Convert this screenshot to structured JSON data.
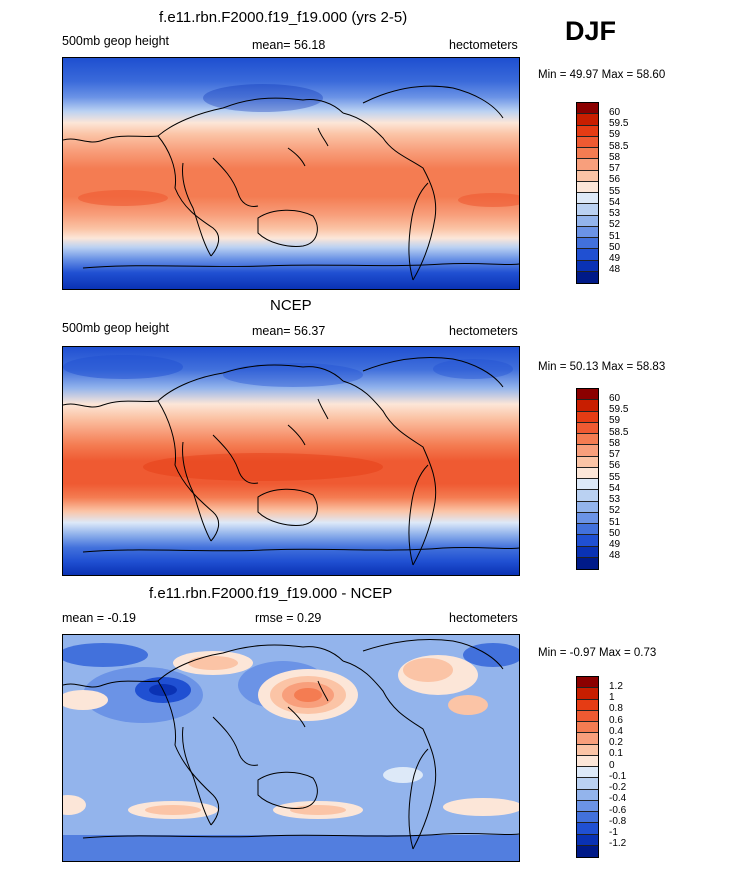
{
  "season": "DJF",
  "panels": [
    {
      "title": "f.e11.rbn.F2000.f19_f19.000 (yrs 2-5)",
      "left_label": "500mb geop height",
      "stat_text": "mean=  56.18",
      "units": "hectometers",
      "minmax": "Min =  49.97 Max =  58.60",
      "colorbar_labels": [
        "60",
        "59.5",
        "59",
        "58.5",
        "58",
        "57",
        "56",
        "55",
        "54",
        "53",
        "52",
        "51",
        "50",
        "49",
        "48"
      ],
      "colorbar_colors": [
        "#8b0000",
        "#c81e00",
        "#e53c14",
        "#ef5a32",
        "#f47c52",
        "#f89f7c",
        "#fbc4a6",
        "#fce6d8",
        "#dde9f8",
        "#bad1f2",
        "#93b4ec",
        "#6b93e6",
        "#4271dc",
        "#2050d2",
        "#0a32b4",
        "#001a88"
      ]
    },
    {
      "title": "NCEP",
      "left_label": "500mb geop height",
      "stat_text": "mean=  56.37",
      "units": "hectometers",
      "minmax": "Min =  50.13 Max =  58.83",
      "colorbar_labels": [
        "60",
        "59.5",
        "59",
        "58.5",
        "58",
        "57",
        "56",
        "55",
        "54",
        "53",
        "52",
        "51",
        "50",
        "49",
        "48"
      ],
      "colorbar_colors": [
        "#8b0000",
        "#c81e00",
        "#e53c14",
        "#ef5a32",
        "#f47c52",
        "#f89f7c",
        "#fbc4a6",
        "#fce6d8",
        "#dde9f8",
        "#bad1f2",
        "#93b4ec",
        "#6b93e6",
        "#4271dc",
        "#2050d2",
        "#0a32b4",
        "#001a88"
      ]
    },
    {
      "title": "f.e11.rbn.F2000.f19_f19.000 - NCEP",
      "left_label": "mean =  -0.19",
      "stat_text": "rmse =  0.29",
      "units": "hectometers",
      "minmax": "Min =  -0.97 Max =   0.73",
      "colorbar_labels": [
        "1.2",
        "1",
        "0.8",
        "0.6",
        "0.4",
        "0.2",
        "0.1",
        "0",
        "-0.1",
        "-0.2",
        "-0.4",
        "-0.6",
        "-0.8",
        "-1",
        "-1.2"
      ],
      "colorbar_colors": [
        "#8b0000",
        "#c81e00",
        "#e53c14",
        "#ef5a32",
        "#f47c52",
        "#f89f7c",
        "#fbc4a6",
        "#fce6d8",
        "#dde9f8",
        "#bad1f2",
        "#93b4ec",
        "#6b93e6",
        "#4271dc",
        "#2050d2",
        "#0a32b4",
        "#001a88"
      ]
    }
  ]
}
